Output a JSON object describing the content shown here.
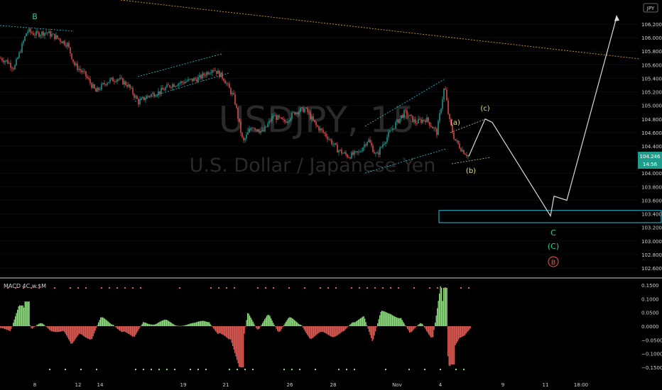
{
  "header": {
    "currency_badge": "JPY",
    "watermark_symbol": "USDJPY, 15",
    "watermark_name": "U.S. Dollar / Japanese Yen"
  },
  "price_axis": {
    "ticks": [
      "106.200",
      "106.000",
      "105.800",
      "105.600",
      "105.400",
      "105.200",
      "105.000",
      "104.800",
      "104.600",
      "104.400",
      "104.200",
      "104.000",
      "103.800",
      "103.600",
      "103.400",
      "103.200",
      "103.000",
      "102.800",
      "102.600"
    ],
    "current_price": "104.246",
    "countdown": "14:56"
  },
  "time_axis": {
    "ticks": [
      "8",
      "12",
      "14",
      "19",
      "21",
      "26",
      "28",
      "Nov",
      "4",
      "9",
      "11",
      "18:00"
    ]
  },
  "waves": {
    "B_top": "B",
    "a": "(a)",
    "b": "(b)",
    "c": "(c)",
    "C": "C",
    "C_paren": "(C)",
    "B_circle": "B"
  },
  "macd": {
    "title": "MACD 4C w.$M",
    "ticks": [
      "0.1500",
      "0.1000",
      "0.0500",
      "0.0000",
      "−0.0500",
      "−0.1000",
      "−0.1500"
    ]
  },
  "colors": {
    "background": "#000000",
    "up_candle": "#26a69a",
    "down_candle": "#ef5350",
    "macd_positive": "#8bdc7a",
    "macd_negative": "#e05a52",
    "channel": "#26c6da",
    "target_box": "#26c6da",
    "wave_yellow": "#e6e07a",
    "wave_green": "#2fcf8a",
    "wave_red": "#f05a4a",
    "projection": "#d9d9d9",
    "long_trendline": "#c08a3a",
    "price_tag": "#1f9d8c"
  },
  "chart_data": {
    "type": "candlestick",
    "symbol": "USDJPY",
    "timeframe": "15",
    "y_range": [
      102.5,
      106.35
    ],
    "current_price": 104.246,
    "price_path": [
      {
        "x": 0,
        "y": 105.7
      },
      {
        "x": 10,
        "y": 105.65
      },
      {
        "x": 20,
        "y": 105.55
      },
      {
        "x": 30,
        "y": 105.85
      },
      {
        "x": 38,
        "y": 106.1
      },
      {
        "x": 50,
        "y": 106.05
      },
      {
        "x": 65,
        "y": 106.08
      },
      {
        "x": 80,
        "y": 106.0
      },
      {
        "x": 95,
        "y": 105.9
      },
      {
        "x": 105,
        "y": 105.6
      },
      {
        "x": 120,
        "y": 105.45
      },
      {
        "x": 135,
        "y": 105.2
      },
      {
        "x": 150,
        "y": 105.35
      },
      {
        "x": 165,
        "y": 105.4
      },
      {
        "x": 180,
        "y": 105.3
      },
      {
        "x": 195,
        "y": 105.05
      },
      {
        "x": 210,
        "y": 105.15
      },
      {
        "x": 225,
        "y": 105.2
      },
      {
        "x": 240,
        "y": 105.3
      },
      {
        "x": 260,
        "y": 105.35
      },
      {
        "x": 280,
        "y": 105.4
      },
      {
        "x": 300,
        "y": 105.55
      },
      {
        "x": 315,
        "y": 105.4
      },
      {
        "x": 330,
        "y": 105.1
      },
      {
        "x": 342,
        "y": 104.45
      },
      {
        "x": 355,
        "y": 104.7
      },
      {
        "x": 370,
        "y": 104.6
      },
      {
        "x": 385,
        "y": 104.85
      },
      {
        "x": 400,
        "y": 104.75
      },
      {
        "x": 415,
        "y": 104.9
      },
      {
        "x": 430,
        "y": 104.95
      },
      {
        "x": 445,
        "y": 104.7
      },
      {
        "x": 460,
        "y": 104.55
      },
      {
        "x": 475,
        "y": 104.35
      },
      {
        "x": 490,
        "y": 104.25
      },
      {
        "x": 505,
        "y": 104.3
      },
      {
        "x": 518,
        "y": 104.5
      },
      {
        "x": 530,
        "y": 104.25
      },
      {
        "x": 540,
        "y": 104.45
      },
      {
        "x": 555,
        "y": 104.7
      },
      {
        "x": 570,
        "y": 104.9
      },
      {
        "x": 585,
        "y": 104.75
      },
      {
        "x": 600,
        "y": 104.8
      },
      {
        "x": 615,
        "y": 104.6
      },
      {
        "x": 626,
        "y": 105.3
      },
      {
        "x": 632,
        "y": 104.8
      },
      {
        "x": 640,
        "y": 104.5
      },
      {
        "x": 650,
        "y": 104.35
      },
      {
        "x": 660,
        "y": 104.25
      }
    ],
    "projection_path": [
      {
        "x": 660,
        "y": 104.25
      },
      {
        "x": 683,
        "y": 104.8
      },
      {
        "x": 693,
        "y": 104.75
      },
      {
        "x": 775,
        "y": 103.37
      },
      {
        "x": 780,
        "y": 103.66
      },
      {
        "x": 798,
        "y": 103.6
      },
      {
        "x": 868,
        "y": 106.3
      }
    ],
    "target_zone": {
      "x_start": 618,
      "x_end": 932,
      "y_low": 103.27,
      "y_high": 103.45
    },
    "macd_range": [
      -0.17,
      0.17
    ]
  }
}
